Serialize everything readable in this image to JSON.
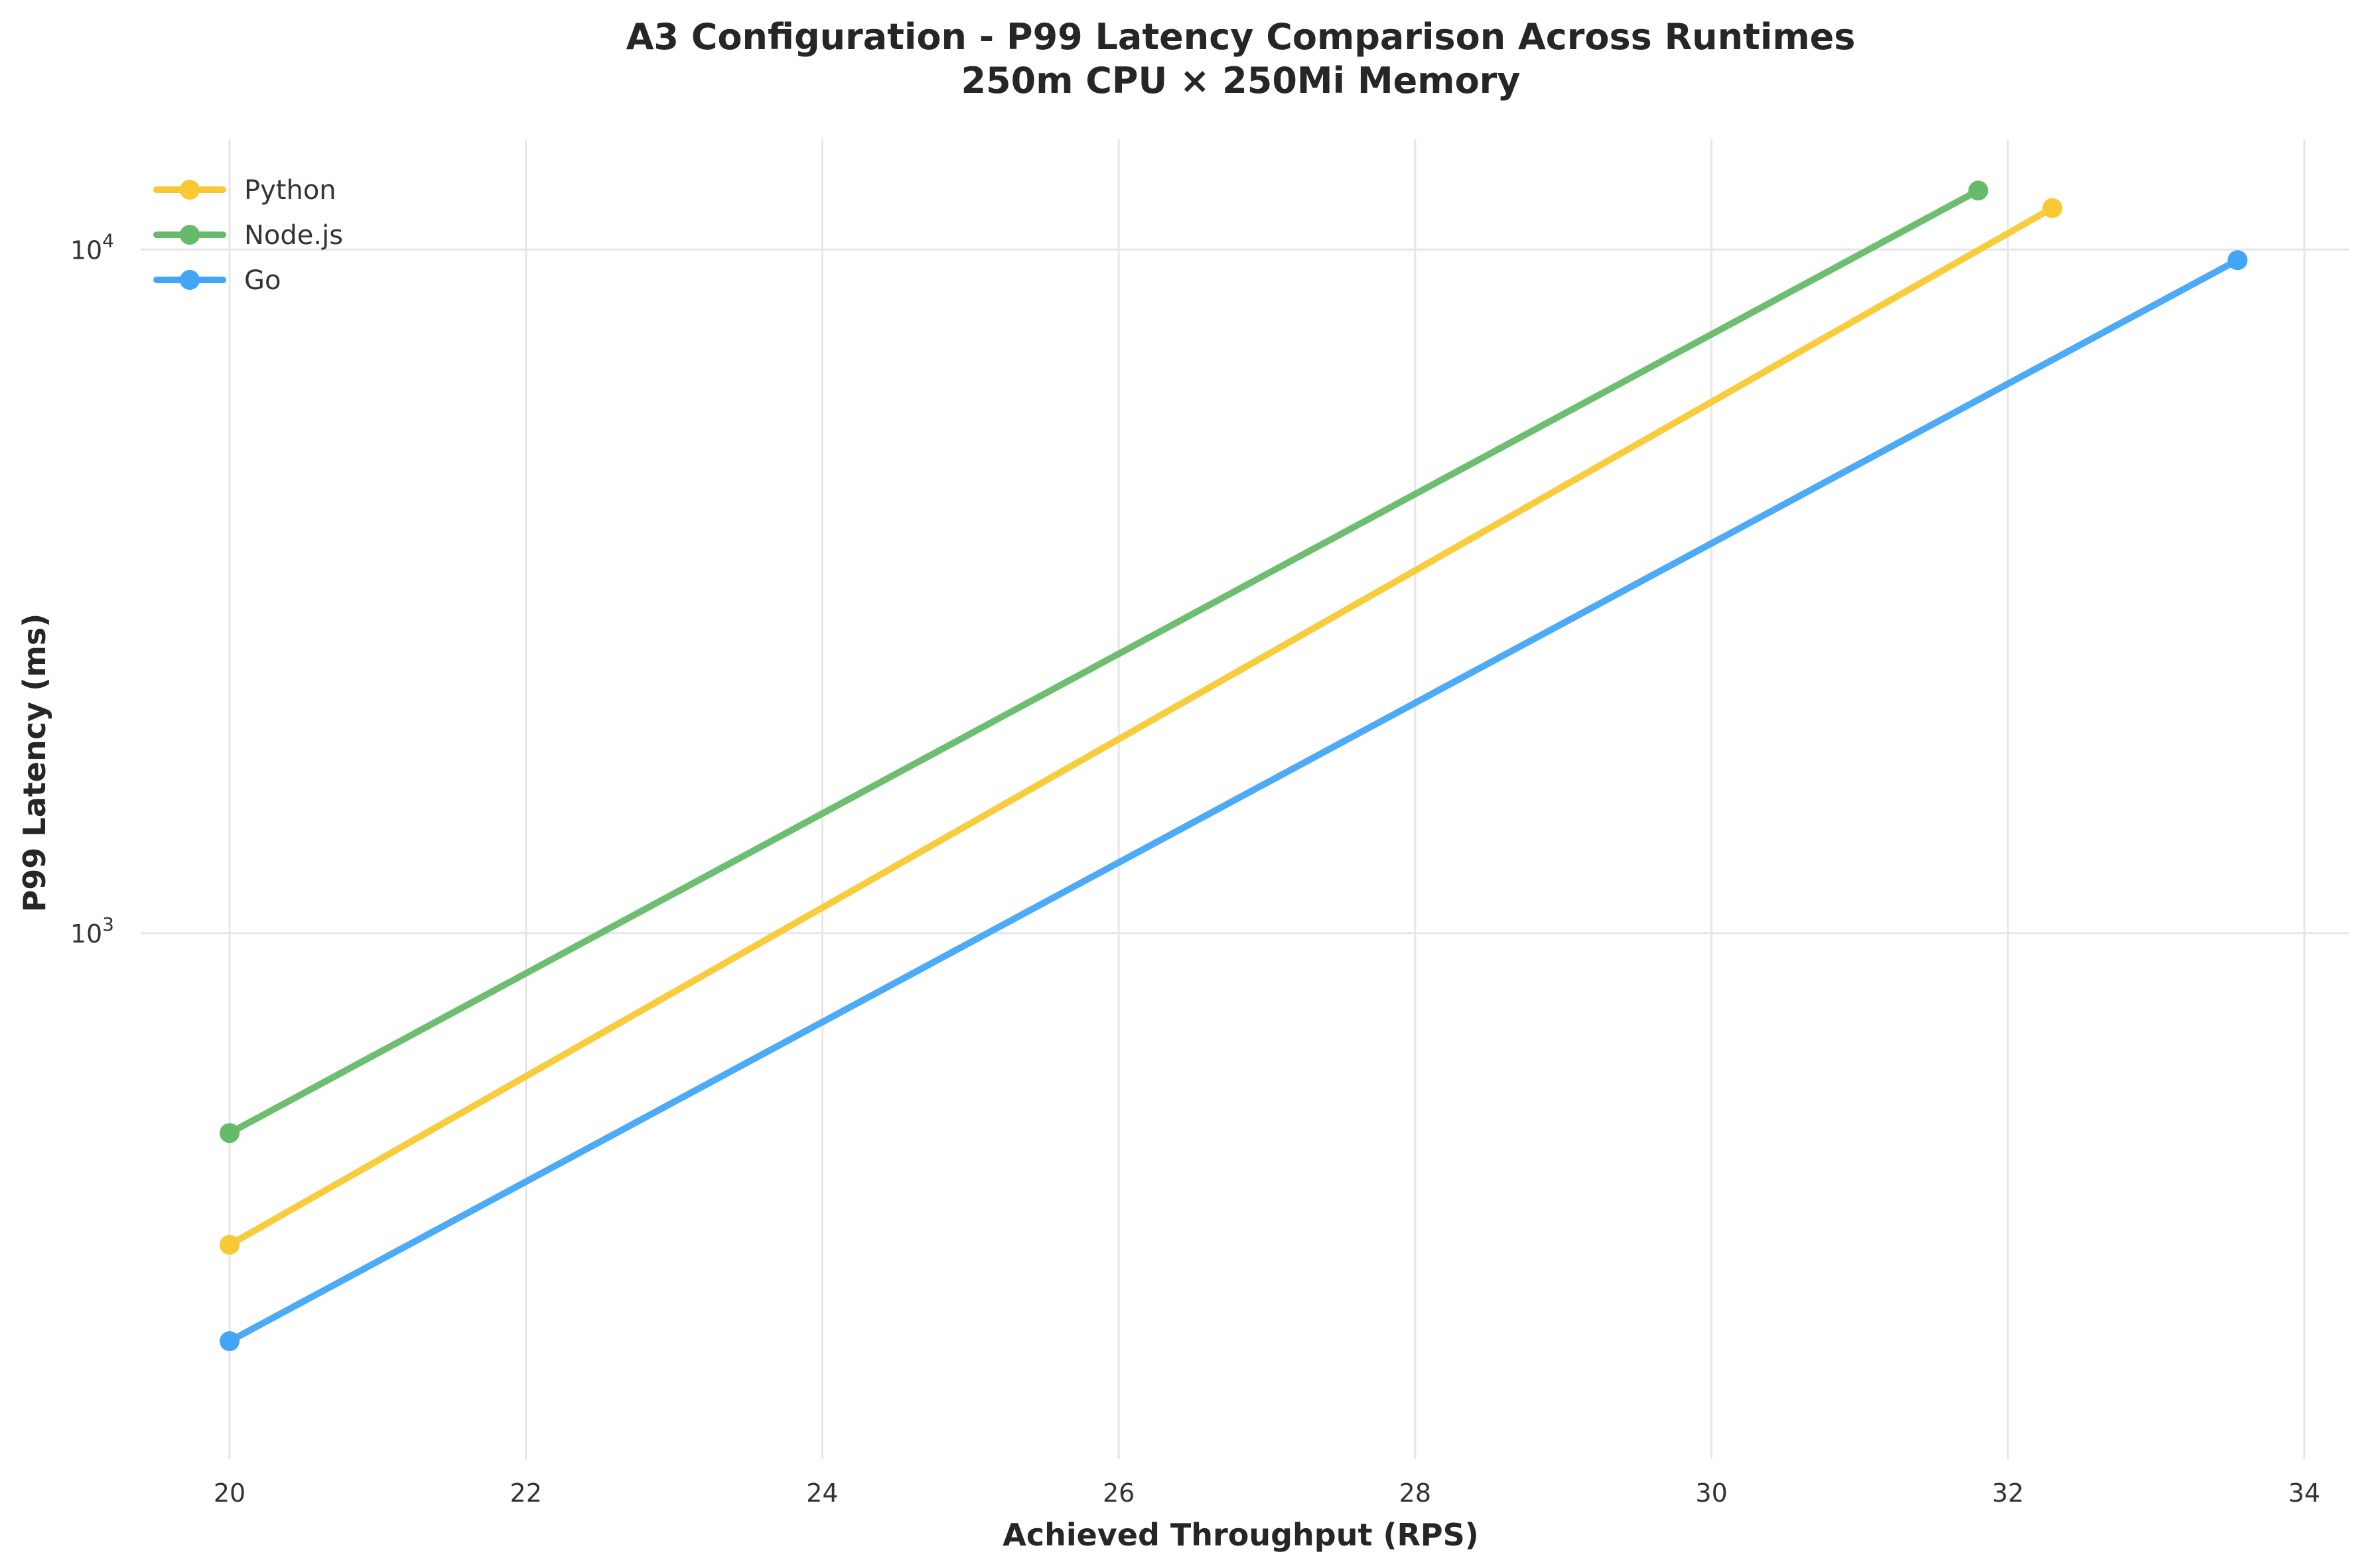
{
  "chart_data": {
    "type": "line",
    "title": "A3 Configuration - P99 Latency Comparison Across Runtimes",
    "subtitle": "250m CPU × 250Mi Memory",
    "xlabel": "Achieved Throughput (RPS)",
    "ylabel": "P99 Latency (ms)",
    "xlim": [
      19.4,
      34.3
    ],
    "ylim": [
      170,
      14500
    ],
    "yscale": "log",
    "grid": true,
    "legend_position": "top-left",
    "x_ticks": [
      20,
      22,
      24,
      26,
      28,
      30,
      32,
      34
    ],
    "y_ticks": [
      {
        "value": 1000,
        "base": "10",
        "exponent": "3"
      },
      {
        "value": 10000,
        "base": "10",
        "exponent": "4"
      }
    ],
    "series": [
      {
        "name": "Python",
        "color": "#f9c933",
        "x": [
          20,
          32.3
        ],
        "y": [
          350,
          11500
        ]
      },
      {
        "name": "Node.js",
        "color": "#66bb6a",
        "x": [
          20,
          31.8
        ],
        "y": [
          510,
          12200
        ]
      },
      {
        "name": "Go",
        "color": "#42a5f5",
        "x": [
          20,
          33.55
        ],
        "y": [
          253,
          9650
        ]
      }
    ]
  }
}
